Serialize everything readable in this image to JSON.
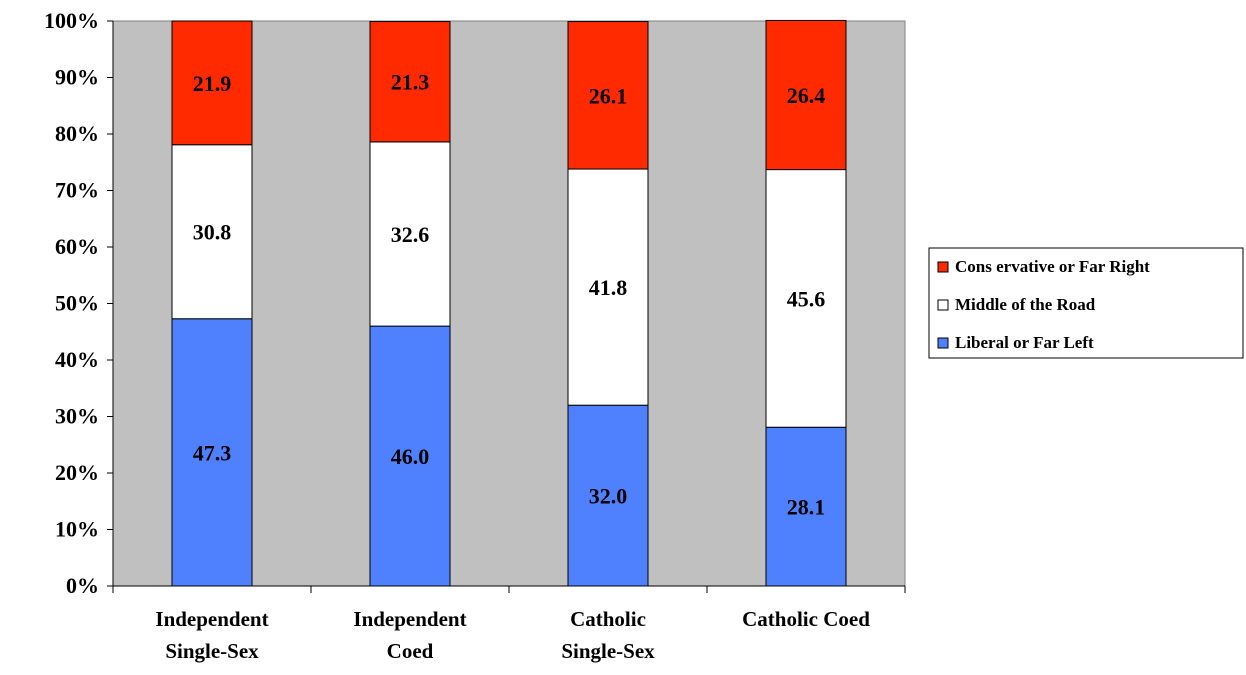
{
  "chart_data": {
    "type": "bar",
    "stacked": true,
    "title": "",
    "xlabel": "",
    "ylabel": "",
    "ylim": [
      0,
      100
    ],
    "y_ticks": [
      "0%",
      "10%",
      "20%",
      "30%",
      "40%",
      "50%",
      "60%",
      "70%",
      "80%",
      "90%",
      "100%"
    ],
    "grid": false,
    "legend_position": "right",
    "categories": [
      [
        "Independent",
        "Single-Sex"
      ],
      [
        "Independent",
        "Coed"
      ],
      [
        "Catholic",
        "Single-Sex"
      ],
      [
        "Catholic Coed"
      ]
    ],
    "series": [
      {
        "name": "Liberal or Far Left",
        "color": "#4F81FF",
        "values": [
          47.3,
          46.0,
          32.0,
          28.1
        ],
        "labels": [
          "47.3",
          "46.0",
          "32.0",
          "28.1"
        ]
      },
      {
        "name": "Middle of the Road",
        "color": "#FFFFFF",
        "values": [
          30.8,
          32.6,
          41.8,
          45.6
        ],
        "labels": [
          "30.8",
          "32.6",
          "41.8",
          "45.6"
        ]
      },
      {
        "name": "Conservative or Far Right",
        "color": "#FF2A00",
        "values": [
          21.9,
          21.3,
          26.1,
          26.4
        ],
        "labels": [
          "21.9",
          "21.3",
          "26.1",
          "26.4"
        ]
      }
    ],
    "legend_order": [
      2,
      1,
      0
    ],
    "legend_labels": [
      "Cons ervative or Far Right",
      "Middle of the Road",
      "Liberal or Far Left"
    ],
    "plot_background": "#C0C0C0"
  }
}
